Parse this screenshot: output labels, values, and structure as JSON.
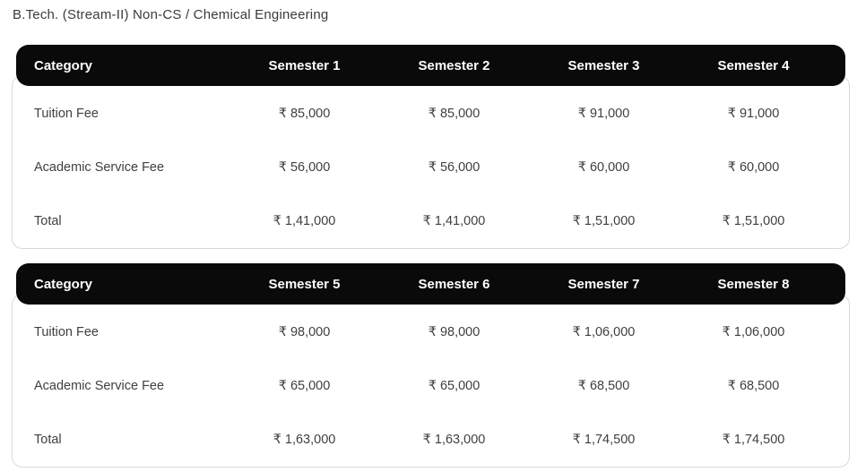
{
  "page": {
    "title": "B.Tech. (Stream-II) Non-CS / Chemical Engineering"
  },
  "colors": {
    "header_bg": "#0a0a0a",
    "header_text": "#ffffff",
    "body_text": "#3f3f3f",
    "card_border": "#d9d9d9",
    "page_bg": "#ffffff"
  },
  "currency_symbol": "₹",
  "tables": [
    {
      "columns": [
        "Category",
        "Semester 1",
        "Semester 2",
        "Semester 3",
        "Semester 4"
      ],
      "rows": [
        {
          "category": "Tuition Fee",
          "values": [
            "₹ 85,000",
            "₹ 85,000",
            "₹ 91,000",
            "₹ 91,000"
          ]
        },
        {
          "category": "Academic Service Fee",
          "values": [
            "₹ 56,000",
            "₹ 56,000",
            "₹ 60,000",
            "₹ 60,000"
          ]
        },
        {
          "category": "Total",
          "values": [
            "₹ 1,41,000",
            "₹ 1,41,000",
            "₹ 1,51,000",
            "₹ 1,51,000"
          ]
        }
      ]
    },
    {
      "columns": [
        "Category",
        "Semester 5",
        "Semester 6",
        "Semester 7",
        "Semester 8"
      ],
      "rows": [
        {
          "category": "Tuition Fee",
          "values": [
            "₹ 98,000",
            "₹ 98,000",
            "₹ 1,06,000",
            "₹ 1,06,000"
          ]
        },
        {
          "category": "Academic Service Fee",
          "values": [
            "₹ 65,000",
            "₹ 65,000",
            "₹ 68,500",
            "₹ 68,500"
          ]
        },
        {
          "category": "Total",
          "values": [
            "₹ 1,63,000",
            "₹ 1,63,000",
            "₹ 1,74,500",
            "₹ 1,74,500"
          ]
        }
      ]
    }
  ]
}
